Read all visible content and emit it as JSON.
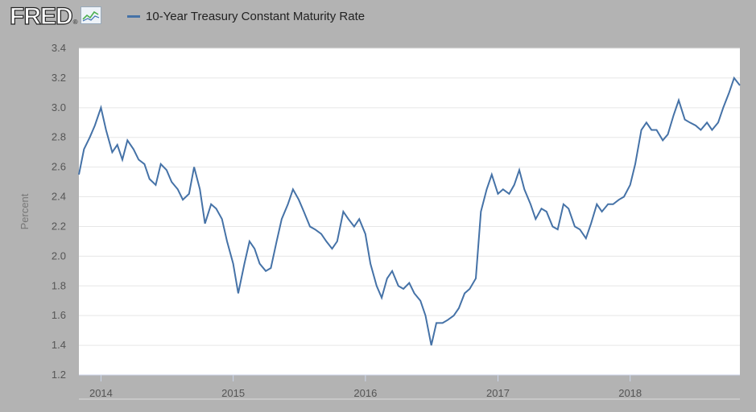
{
  "branding": {
    "logo_text": "FRED",
    "logo_registered": "®"
  },
  "icons": {
    "logo_graph": "line-graph-icon"
  },
  "chart_data": {
    "type": "line",
    "title": "",
    "ylabel": "Percent",
    "xlabel": "",
    "ylim": [
      1.2,
      3.4
    ],
    "y_ticks": [
      1.2,
      1.4,
      1.6,
      1.8,
      2.0,
      2.2,
      2.4,
      2.6,
      2.8,
      3.0,
      3.2,
      3.4
    ],
    "y_tick_labels": [
      "1.2",
      "1.4",
      "1.6",
      "1.8",
      "2.0",
      "2.2",
      "2.4",
      "2.6",
      "2.8",
      "3.0",
      "3.2",
      "3.4"
    ],
    "x_ticks": [
      "2014-01-01",
      "2015-01-01",
      "2016-01-01",
      "2017-01-01",
      "2018-01-01"
    ],
    "x_tick_labels": [
      "2014",
      "2015",
      "2016",
      "2017",
      "2018"
    ],
    "xlim": [
      "2013-11-01",
      "2018-10-31"
    ],
    "grid": true,
    "line_color": "#4572a7",
    "series": [
      {
        "name": "10-Year Treasury Constant Maturity Rate",
        "x": [
          "2013-11-01",
          "2013-11-15",
          "2013-12-01",
          "2013-12-15",
          "2014-01-01",
          "2014-01-15",
          "2014-02-01",
          "2014-02-15",
          "2014-03-01",
          "2014-03-15",
          "2014-04-01",
          "2014-04-15",
          "2014-05-01",
          "2014-05-15",
          "2014-06-01",
          "2014-06-15",
          "2014-07-01",
          "2014-07-15",
          "2014-08-01",
          "2014-08-15",
          "2014-09-01",
          "2014-09-15",
          "2014-10-01",
          "2014-10-15",
          "2014-11-01",
          "2014-11-15",
          "2014-12-01",
          "2014-12-15",
          "2015-01-01",
          "2015-01-15",
          "2015-02-01",
          "2015-02-15",
          "2015-03-01",
          "2015-03-15",
          "2015-04-01",
          "2015-04-15",
          "2015-05-01",
          "2015-05-15",
          "2015-06-01",
          "2015-06-15",
          "2015-07-01",
          "2015-07-15",
          "2015-08-01",
          "2015-08-15",
          "2015-09-01",
          "2015-09-15",
          "2015-10-01",
          "2015-10-15",
          "2015-11-01",
          "2015-11-15",
          "2015-12-01",
          "2015-12-15",
          "2016-01-01",
          "2016-01-15",
          "2016-02-01",
          "2016-02-15",
          "2016-03-01",
          "2016-03-15",
          "2016-04-01",
          "2016-04-15",
          "2016-05-01",
          "2016-05-15",
          "2016-06-01",
          "2016-06-15",
          "2016-07-01",
          "2016-07-15",
          "2016-08-01",
          "2016-08-15",
          "2016-09-01",
          "2016-09-15",
          "2016-10-01",
          "2016-10-15",
          "2016-11-01",
          "2016-11-15",
          "2016-12-01",
          "2016-12-15",
          "2017-01-01",
          "2017-01-15",
          "2017-02-01",
          "2017-02-15",
          "2017-03-01",
          "2017-03-15",
          "2017-04-01",
          "2017-04-15",
          "2017-05-01",
          "2017-05-15",
          "2017-06-01",
          "2017-06-15",
          "2017-07-01",
          "2017-07-15",
          "2017-08-01",
          "2017-08-15",
          "2017-09-01",
          "2017-09-15",
          "2017-10-01",
          "2017-10-15",
          "2017-11-01",
          "2017-11-15",
          "2017-12-01",
          "2017-12-15",
          "2018-01-01",
          "2018-01-15",
          "2018-02-01",
          "2018-02-15",
          "2018-03-01",
          "2018-03-15",
          "2018-04-01",
          "2018-04-15",
          "2018-05-01",
          "2018-05-15",
          "2018-06-01",
          "2018-06-15",
          "2018-07-01",
          "2018-07-15",
          "2018-08-01",
          "2018-08-15",
          "2018-09-01",
          "2018-09-15",
          "2018-10-01",
          "2018-10-15",
          "2018-10-31"
        ],
        "values": [
          2.55,
          2.72,
          2.8,
          2.88,
          3.0,
          2.85,
          2.7,
          2.75,
          2.65,
          2.78,
          2.72,
          2.65,
          2.62,
          2.52,
          2.48,
          2.62,
          2.58,
          2.5,
          2.45,
          2.38,
          2.42,
          2.6,
          2.45,
          2.22,
          2.35,
          2.32,
          2.25,
          2.1,
          1.95,
          1.75,
          1.95,
          2.1,
          2.05,
          1.95,
          1.9,
          1.92,
          2.1,
          2.25,
          2.35,
          2.45,
          2.38,
          2.3,
          2.2,
          2.18,
          2.15,
          2.1,
          2.05,
          2.1,
          2.3,
          2.25,
          2.2,
          2.25,
          2.15,
          1.95,
          1.8,
          1.72,
          1.85,
          1.9,
          1.8,
          1.78,
          1.82,
          1.75,
          1.7,
          1.6,
          1.4,
          1.55,
          1.55,
          1.57,
          1.6,
          1.65,
          1.75,
          1.78,
          1.85,
          2.3,
          2.45,
          2.55,
          2.42,
          2.45,
          2.42,
          2.48,
          2.58,
          2.45,
          2.35,
          2.25,
          2.32,
          2.3,
          2.2,
          2.18,
          2.35,
          2.32,
          2.2,
          2.18,
          2.12,
          2.22,
          2.35,
          2.3,
          2.35,
          2.35,
          2.38,
          2.4,
          2.48,
          2.62,
          2.85,
          2.9,
          2.85,
          2.85,
          2.78,
          2.82,
          2.95,
          3.05,
          2.92,
          2.9,
          2.88,
          2.85,
          2.9,
          2.85,
          2.9,
          3.0,
          3.1,
          3.2,
          3.15
        ]
      }
    ]
  }
}
